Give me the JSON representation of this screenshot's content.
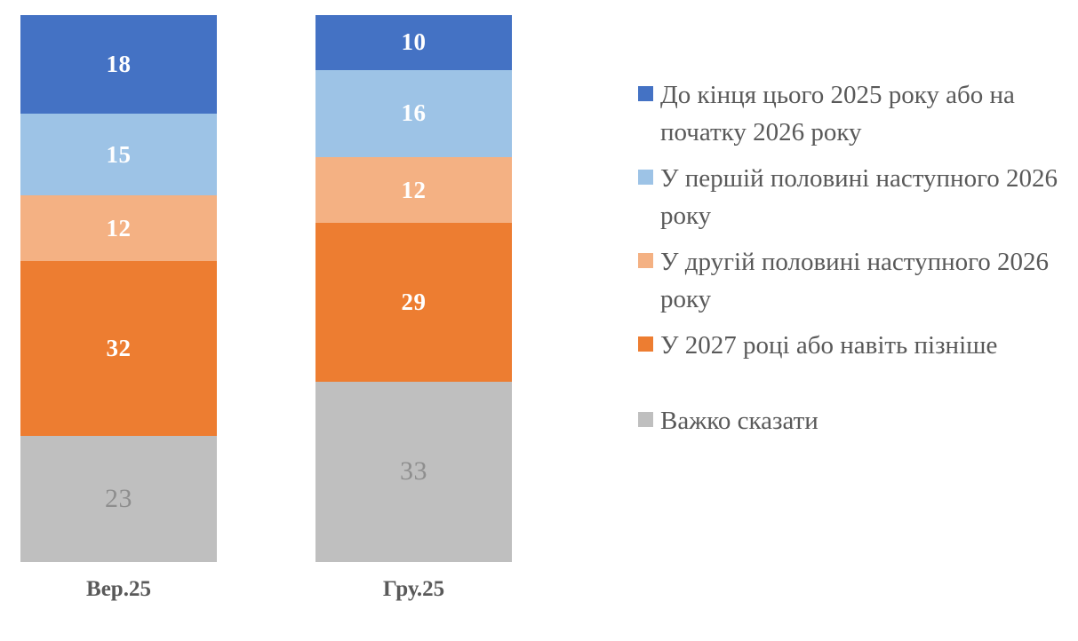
{
  "chart_data": {
    "type": "bar",
    "stacked": true,
    "title": "",
    "xlabel": "",
    "ylabel": "",
    "ylim": [
      0,
      100
    ],
    "grid": false,
    "legend_position": "right",
    "categories": [
      "Вер.25",
      "Гру.25"
    ],
    "series": [
      {
        "name": "До кінця цього 2025 року або на початку 2026 року",
        "values": [
          18,
          10
        ],
        "color": "#4472C4",
        "label_color": "#FFFFFF",
        "label_bold": true
      },
      {
        "name": "У першій половині наступного 2026 року",
        "values": [
          15,
          16
        ],
        "color": "#9DC3E6",
        "label_color": "#FFFFFF",
        "label_bold": true
      },
      {
        "name": "У другій половині наступного 2026 року",
        "values": [
          12,
          12
        ],
        "color": "#F4B183",
        "label_color": "#FFFFFF",
        "label_bold": true
      },
      {
        "name": "У 2027 році або навіть пізніше",
        "values": [
          32,
          29
        ],
        "color": "#ED7D31",
        "label_color": "#FFFFFF",
        "label_bold": true
      },
      {
        "name": "Важко сказати",
        "values": [
          23,
          33
        ],
        "color": "#BFBFBF",
        "label_color": "#8E8E8E",
        "label_bold": false
      }
    ]
  }
}
